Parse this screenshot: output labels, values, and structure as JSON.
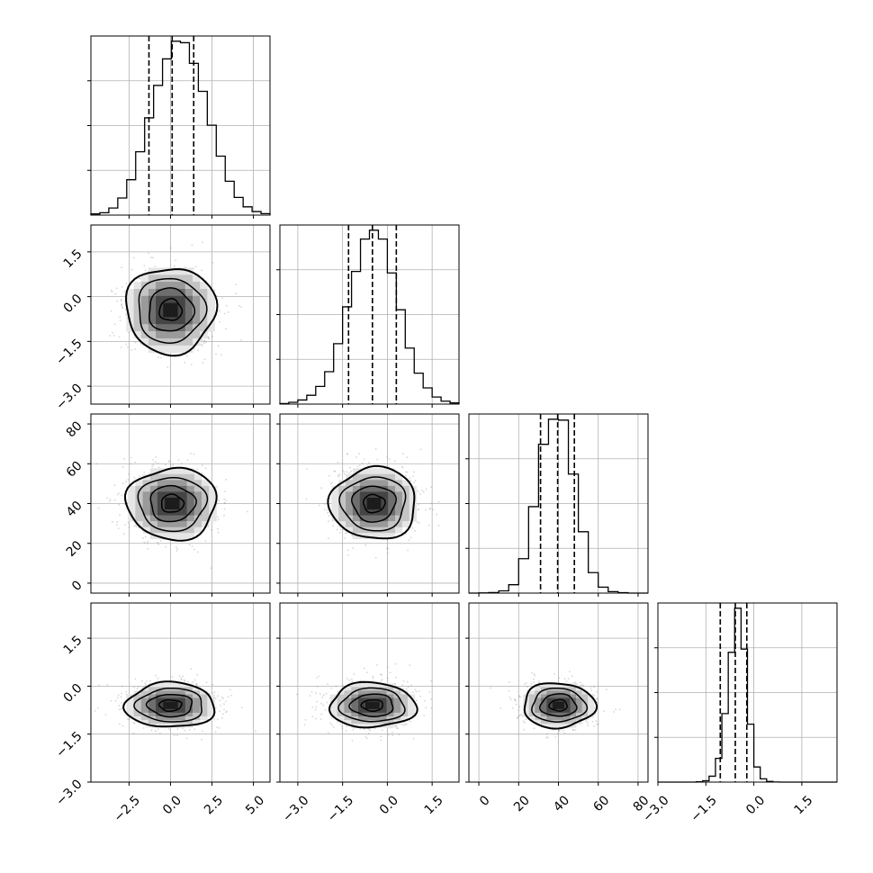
{
  "chart_data": {
    "type": "corner",
    "n_params": 4,
    "params": [
      {
        "range": [
          -4.8,
          6.0
        ],
        "ticks": [
          -2.5,
          0.0,
          2.5,
          5.0
        ],
        "tick_labels": [
          "−2.5",
          "0.0",
          "2.5",
          "5.0"
        ],
        "quantiles": [
          -1.3,
          0.1,
          1.4
        ]
      },
      {
        "range": [
          -3.6,
          2.4
        ],
        "ticks": [
          -3.0,
          -1.5,
          0.0,
          1.5
        ],
        "tick_labels": [
          "−3.0",
          "−1.5",
          "0.0",
          "1.5"
        ],
        "quantiles": [
          -1.3,
          -0.5,
          0.3
        ]
      },
      {
        "range": [
          -5,
          85
        ],
        "ticks": [
          0,
          20,
          40,
          60,
          80
        ],
        "tick_labels": [
          "0",
          "20",
          "40",
          "60",
          "80"
        ],
        "quantiles": [
          31,
          39.6,
          48
        ]
      },
      {
        "range": [
          -3.0,
          2.6
        ],
        "ticks": [
          -3.0,
          -1.5,
          0.0,
          1.5
        ],
        "tick_labels": [
          "−3.0",
          "−1.5",
          "0.0",
          "1.5"
        ],
        "quantiles": [
          -1.05,
          -0.58,
          -0.22
        ]
      }
    ],
    "histograms": [
      {
        "edges": [
          -4.8,
          -4.26,
          -3.72,
          -3.18,
          -2.64,
          -2.1,
          -1.56,
          -1.02,
          -0.48,
          0.06,
          0.6,
          1.14,
          1.68,
          2.22,
          2.76,
          3.3,
          3.84,
          4.38,
          4.92,
          5.46,
          6.0
        ],
        "counts": [
          4,
          8,
          24,
          58,
          120,
          215,
          330,
          440,
          530,
          590,
          585,
          515,
          420,
          305,
          200,
          115,
          60,
          28,
          12,
          5
        ]
      },
      {
        "edges": [
          -3.6,
          -3.3,
          -3.0,
          -2.7,
          -2.4,
          -2.1,
          -1.8,
          -1.5,
          -1.2,
          -0.9,
          -0.6,
          -0.3,
          0.0,
          0.3,
          0.6,
          0.9,
          1.2,
          1.5,
          1.8,
          2.1,
          2.4
        ],
        "counts": [
          2,
          6,
          14,
          30,
          60,
          110,
          205,
          330,
          450,
          560,
          590,
          560,
          445,
          320,
          190,
          105,
          55,
          24,
          10,
          4
        ]
      },
      {
        "edges": [
          -5,
          0,
          5,
          10,
          15,
          20,
          25,
          30,
          35,
          40,
          45,
          50,
          55,
          60,
          65,
          70,
          75,
          80,
          85
        ],
        "counts": [
          0,
          1,
          3,
          12,
          45,
          185,
          465,
          800,
          935,
          930,
          640,
          330,
          110,
          32,
          8,
          2,
          0,
          0
        ]
      },
      {
        "edges": [
          -3.0,
          -2.8,
          -2.6,
          -2.4,
          -2.2,
          -2.0,
          -1.8,
          -1.6,
          -1.4,
          -1.2,
          -1.0,
          -0.8,
          -0.6,
          -0.4,
          -0.2,
          0.0,
          0.2,
          0.4,
          0.6,
          0.8,
          1.0,
          1.2,
          1.4,
          1.6,
          1.8,
          2.0,
          2.2,
          2.4,
          2.6
        ],
        "counts": [
          0,
          0,
          0,
          0,
          0,
          0,
          2,
          10,
          45,
          180,
          520,
          985,
          1320,
          1010,
          440,
          115,
          25,
          5,
          1,
          0,
          0,
          0,
          0,
          0,
          0,
          0,
          0,
          0
        ]
      }
    ],
    "correlation_panels": [
      {
        "row": 1,
        "col": 0,
        "center": [
          0.0,
          -0.45
        ],
        "sigma": [
          1.35,
          0.72
        ]
      },
      {
        "row": 2,
        "col": 0,
        "center": [
          0.1,
          40.0
        ],
        "sigma": [
          1.35,
          9.0
        ]
      },
      {
        "row": 2,
        "col": 1,
        "center": [
          -0.45,
          40.0
        ],
        "sigma": [
          0.72,
          9.0
        ]
      },
      {
        "row": 3,
        "col": 0,
        "center": [
          0.0,
          -0.6
        ],
        "sigma": [
          1.35,
          0.35
        ]
      },
      {
        "row": 3,
        "col": 1,
        "center": [
          -0.5,
          -0.6
        ],
        "sigma": [
          0.72,
          0.35
        ]
      },
      {
        "row": 3,
        "col": 2,
        "center": [
          40.0,
          -0.6
        ],
        "sigma": [
          9.0,
          0.35
        ]
      }
    ],
    "contour_levels_sigma": [
      0.5,
      1.0,
      1.5,
      2.0
    ],
    "grid": true,
    "xlabel": "",
    "ylabel": "",
    "title": ""
  }
}
